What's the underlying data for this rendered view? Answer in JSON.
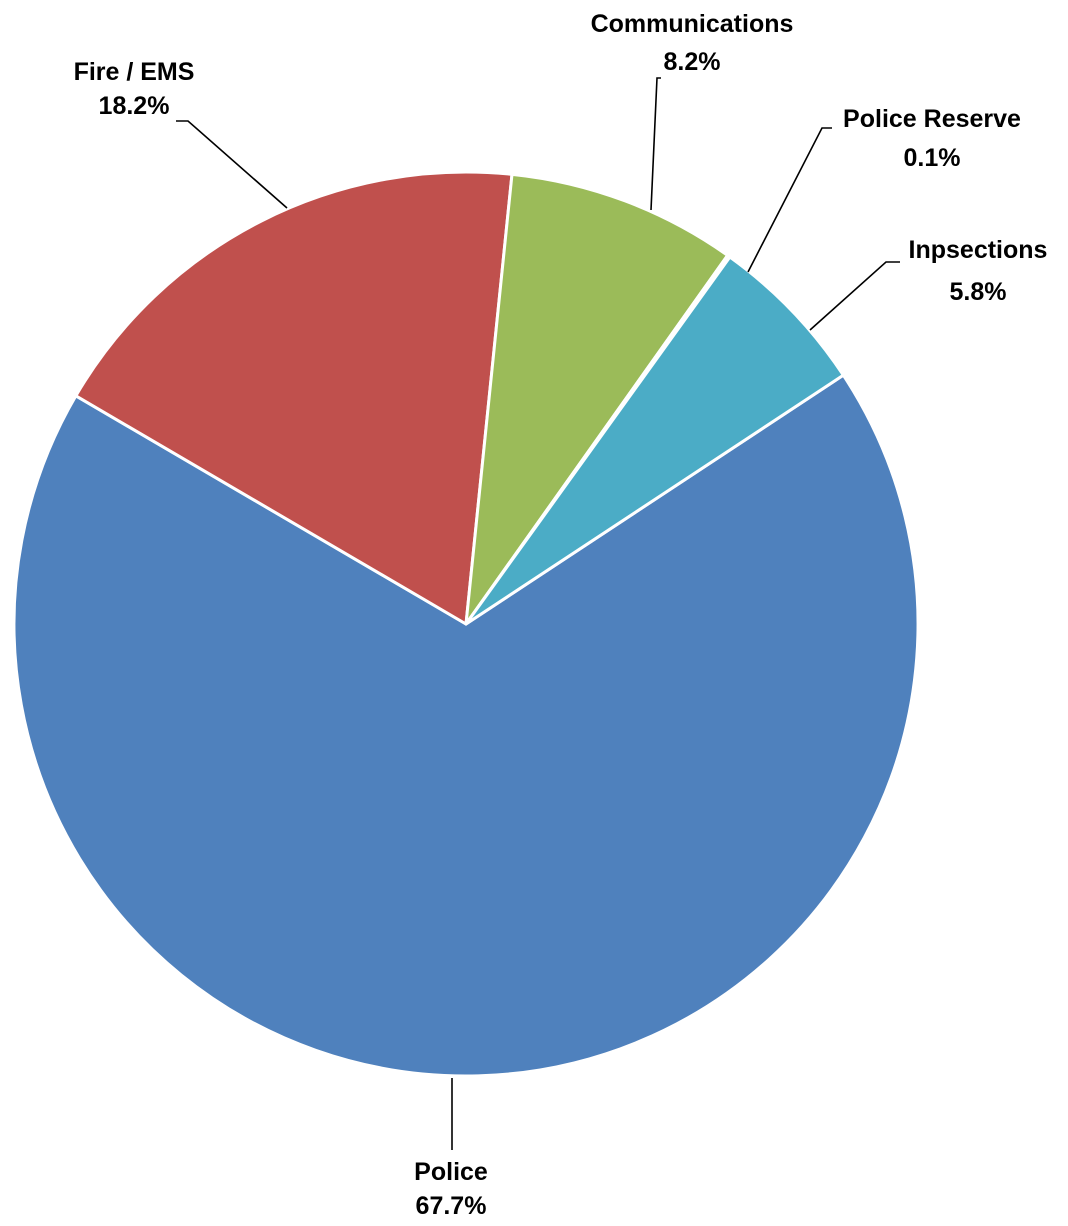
{
  "chart_data": {
    "type": "pie",
    "categories": [
      "Police",
      "Fire / EMS",
      "Communications",
      "Police Reserve",
      "Inpsections"
    ],
    "values": [
      67.7,
      18.2,
      8.2,
      0.1,
      5.8
    ],
    "value_labels": [
      "67.7%",
      "18.2%",
      "8.2%",
      "0.1%",
      "5.8%"
    ],
    "colors": [
      "#4F81BD",
      "#C0504D",
      "#9BBB59",
      "#8064A2",
      "#4BACC6"
    ],
    "legend": "none",
    "data_labels": "category name and percentage, outside end with leader lines"
  }
}
